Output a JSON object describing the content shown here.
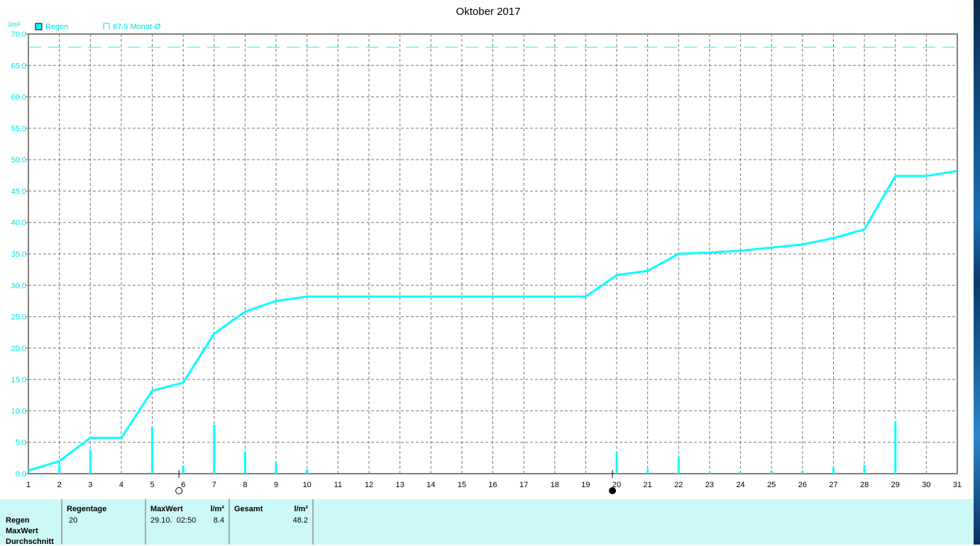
{
  "chart_data": {
    "type": "line+bar",
    "title": "Oktober 2017",
    "ylabel": "l/m²",
    "ylim": [
      0,
      70
    ],
    "xlim": [
      1,
      31
    ],
    "grid": true,
    "y_ticks": [
      "0.0",
      "5.0",
      "10.0",
      "15.0",
      "20.0",
      "25.0",
      "30.0",
      "35.0",
      "40.0",
      "45.0",
      "50.0",
      "55.0",
      "60.0",
      "65.0",
      "70.0"
    ],
    "x_ticks": [
      "1",
      "2",
      "3",
      "4",
      "5",
      "6",
      "7",
      "8",
      "9",
      "10",
      "11",
      "12",
      "13",
      "14",
      "15",
      "16",
      "17",
      "18",
      "19",
      "20",
      "21",
      "22",
      "23",
      "24",
      "25",
      "26",
      "27",
      "28",
      "29",
      "30",
      "31"
    ],
    "legend": {
      "series": "Regen",
      "reference": "67.9 Monat-Ø"
    },
    "reference_line": 67.9,
    "color": "#00ffff",
    "cumulative": {
      "x": [
        1,
        2,
        3,
        4,
        5,
        6,
        7,
        8,
        9,
        10,
        11,
        12,
        13,
        14,
        15,
        16,
        17,
        18,
        19,
        20,
        21,
        22,
        23,
        24,
        25,
        26,
        27,
        28,
        29,
        30,
        31
      ],
      "y": [
        0.5,
        2.0,
        5.7,
        5.7,
        13.2,
        14.5,
        22.3,
        25.8,
        27.5,
        28.2,
        28.2,
        28.2,
        28.2,
        28.2,
        28.2,
        28.2,
        28.2,
        28.2,
        28.2,
        31.6,
        32.3,
        35.0,
        35.2,
        35.5,
        36.0,
        36.5,
        37.5,
        38.9,
        47.4,
        47.4,
        48.2
      ]
    },
    "bars": {
      "x": [
        2,
        3,
        5,
        6,
        7,
        8,
        9,
        10,
        20,
        21,
        22,
        23,
        24,
        25,
        26,
        27,
        28,
        29
      ],
      "y": [
        1.5,
        3.8,
        7.5,
        1.3,
        7.8,
        3.5,
        1.8,
        0.7,
        3.4,
        0.7,
        2.7,
        0.2,
        0.3,
        0.5,
        0.5,
        1.0,
        1.4,
        8.4
      ]
    },
    "moon_phases": [
      {
        "day": 6,
        "phase": "full-moon"
      },
      {
        "day": 20,
        "phase": "new-moon"
      }
    ]
  },
  "table": {
    "rows": [
      "Regen",
      "MaxWert",
      "Durchschnitt"
    ],
    "regentage_header": "Regentage",
    "regentage_value": "20",
    "maxwert_header": "MaxWert",
    "maxwert_unit": "l/m²",
    "maxwert_time": "29.10.  02:50",
    "maxwert_value": "8.4",
    "gesamt_header": "Gesamt",
    "gesamt_unit": "l/m²",
    "gesamt_value": "48.2"
  }
}
